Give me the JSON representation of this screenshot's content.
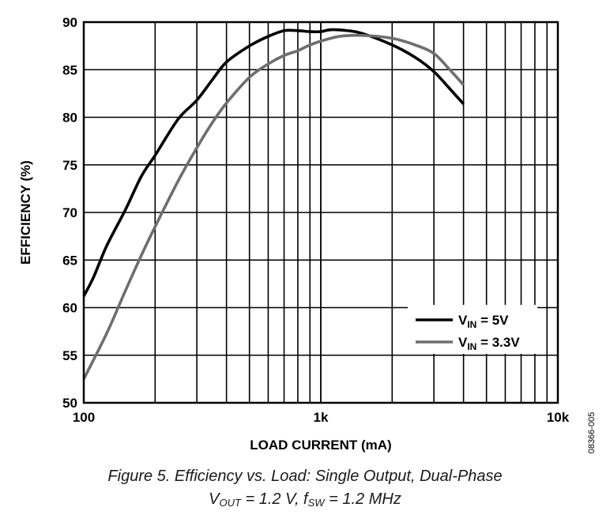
{
  "chart_data": {
    "type": "line",
    "x_scale": "log",
    "xlim": [
      100,
      10000
    ],
    "ylim": [
      50,
      90
    ],
    "grid": true,
    "xlabel": "LOAD CURRENT (mA)",
    "ylabel": "EFFICIENCY (%)",
    "x_tick_labels": [
      {
        "value": 100,
        "label": "100"
      },
      {
        "value": 1000,
        "label": "1k"
      },
      {
        "value": 10000,
        "label": "10k"
      }
    ],
    "y_ticks": [
      50,
      55,
      60,
      65,
      70,
      75,
      80,
      85,
      90
    ],
    "legend_position": "bottom-right",
    "series": [
      {
        "name_main": "V",
        "name_sub": "IN",
        "name_rest": " = 5V",
        "color": "#000000",
        "points": [
          [
            100,
            61.2
          ],
          [
            110,
            63.2
          ],
          [
            125,
            66.5
          ],
          [
            150,
            70.3
          ],
          [
            175,
            73.8
          ],
          [
            200,
            76.0
          ],
          [
            250,
            79.8
          ],
          [
            300,
            81.8
          ],
          [
            350,
            84.0
          ],
          [
            400,
            85.8
          ],
          [
            500,
            87.5
          ],
          [
            600,
            88.5
          ],
          [
            700,
            89.1
          ],
          [
            800,
            89.1
          ],
          [
            900,
            89.0
          ],
          [
            1000,
            89.0
          ],
          [
            1100,
            89.2
          ],
          [
            1300,
            89.1
          ],
          [
            1500,
            88.8
          ],
          [
            2000,
            87.6
          ],
          [
            2500,
            86.3
          ],
          [
            3000,
            84.8
          ],
          [
            3500,
            83.0
          ],
          [
            4000,
            81.4
          ]
        ]
      },
      {
        "name_main": "V",
        "name_sub": "IN",
        "name_rest": " = 3.3V",
        "color": "#6e6e6e",
        "points": [
          [
            100,
            52.5
          ],
          [
            125,
            57.3
          ],
          [
            150,
            61.8
          ],
          [
            175,
            65.5
          ],
          [
            200,
            68.5
          ],
          [
            250,
            73.3
          ],
          [
            300,
            76.8
          ],
          [
            350,
            79.5
          ],
          [
            400,
            81.5
          ],
          [
            500,
            84.2
          ],
          [
            600,
            85.6
          ],
          [
            700,
            86.5
          ],
          [
            800,
            87.0
          ],
          [
            900,
            87.6
          ],
          [
            1000,
            88.0
          ],
          [
            1200,
            88.5
          ],
          [
            1500,
            88.6
          ],
          [
            2000,
            88.3
          ],
          [
            2500,
            87.6
          ],
          [
            3000,
            86.7
          ],
          [
            3500,
            85.0
          ],
          [
            4000,
            83.4
          ]
        ]
      }
    ]
  },
  "figure_id": "08366-005",
  "caption": {
    "line1": "Figure 5. Efficiency vs. Load: Single Output, Dual-Phase",
    "line2_v": "V",
    "line2_v_sub": "OUT",
    "line2_mid": " = 1.2 V, f",
    "line2_f_sub": "SW",
    "line2_end": " = 1.2 MHz"
  }
}
